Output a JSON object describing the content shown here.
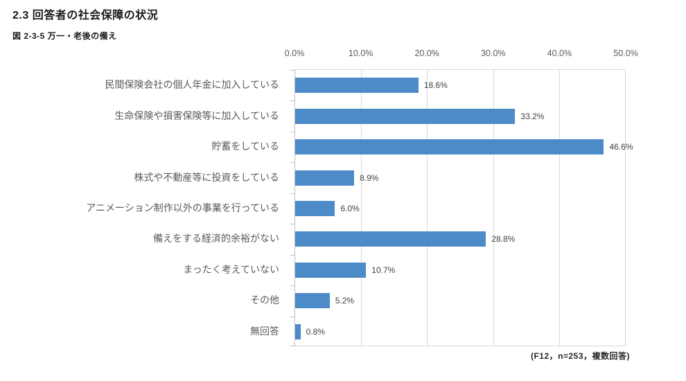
{
  "page": {
    "title": "2.3  回答者の社会保障の状況",
    "figure_label": "図 2-3-5  万一・老後の備え",
    "footnote": "(F12，n=253，複数回答)"
  },
  "chart_data": {
    "type": "bar",
    "orientation": "horizontal",
    "title": "図 2-3-5 万一・老後の備え",
    "xlabel": "",
    "ylabel": "",
    "xlim": [
      0,
      50
    ],
    "grid": true,
    "legend": false,
    "categories": [
      "民間保険会社の個人年金に加入している",
      "生命保険や損害保険等に加入している",
      "貯蓄をしている",
      "株式や不動産等に投資をしている",
      "アニメーション制作以外の事業を行っている",
      "備えをする経済的余裕がない",
      "まったく考えていない",
      "その他",
      "無回答"
    ],
    "values": [
      18.6,
      33.2,
      46.6,
      8.9,
      6.0,
      28.8,
      10.7,
      5.2,
      0.8
    ],
    "value_labels": [
      "18.6%",
      "33.2%",
      "46.6%",
      "8.9%",
      "6.0%",
      "28.8%",
      "10.7%",
      "5.2%",
      "0.8%"
    ],
    "x_ticks": [
      "0.0%",
      "10.0%",
      "20.0%",
      "30.0%",
      "40.0%",
      "50.0%"
    ],
    "colors": {
      "bar": "#4c8ac8",
      "gridline": "#d9d9d9",
      "axis": "#bfbfbf",
      "tick_text": "#595959",
      "category_text": "#595959",
      "value_text": "#404040"
    }
  }
}
